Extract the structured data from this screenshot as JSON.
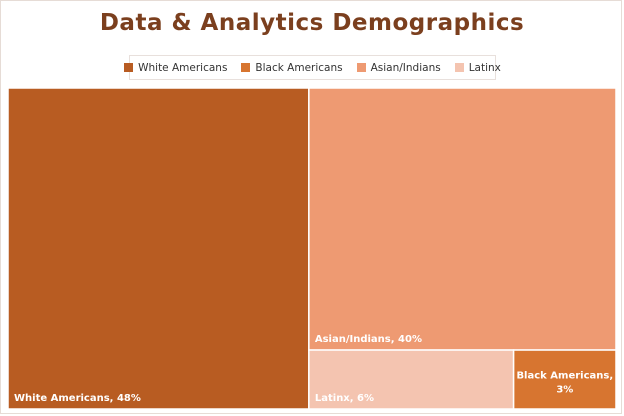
{
  "chart_data": {
    "type": "treemap",
    "title": "Data & Analytics Demographics",
    "legend_position": "top",
    "items": [
      {
        "name": "White Americans",
        "value": 48,
        "label": "White Americans, 48%",
        "color": "#b85c22"
      },
      {
        "name": "Black Americans",
        "value": 3,
        "label": "Black Americans, 3%",
        "color": "#d77530"
      },
      {
        "name": "Asian/Indians",
        "value": 40,
        "label": "Asian/Indians, 40%",
        "color": "#ee9a72"
      },
      {
        "name": "Latinx",
        "value": 6,
        "label": "Latinx, 6%",
        "color": "#f4c4b0"
      }
    ],
    "tile_border_color": "#ffffff"
  }
}
